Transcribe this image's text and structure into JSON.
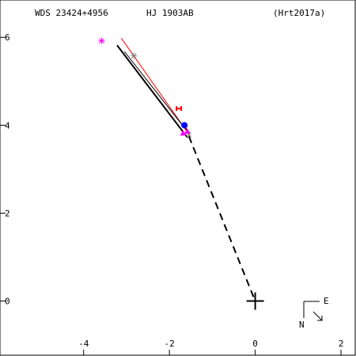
{
  "header": {
    "wds_id": "WDS 23424+4956",
    "discoverer": "HJ 1903AB",
    "reference": "(Hrt2017a)"
  },
  "compass": {
    "north_label": "N",
    "east_label": "E"
  },
  "chart_data": {
    "type": "scatter",
    "title": "",
    "xlabel": "",
    "ylabel": "",
    "xlim": [
      -5.95,
      2.35
    ],
    "ylim": [
      -1.25,
      6.85
    ],
    "x_ticks": [
      {
        "value": -4,
        "label": "-4"
      },
      {
        "value": -2,
        "label": "-2"
      },
      {
        "value": 0,
        "label": "0"
      },
      {
        "value": 2,
        "label": "2"
      }
    ],
    "y_ticks": [
      {
        "value": 0,
        "label": "0"
      },
      {
        "value": 2,
        "label": "2"
      },
      {
        "value": 4,
        "label": "4"
      },
      {
        "value": 6,
        "label": "6"
      }
    ],
    "primary": {
      "x": 0,
      "y": 0,
      "marker": "cross"
    },
    "orbit_segment": {
      "x": [
        -3.22,
        -1.58
      ],
      "y": [
        5.82,
        3.72
      ],
      "color": "#000000"
    },
    "linear_fit": {
      "x": [
        -3.12,
        -1.5
      ],
      "y": [
        5.98,
        3.73
      ],
      "color": "#ff0000"
    },
    "residual_line": {
      "x": [
        -3.05,
        -1.68
      ],
      "y": [
        5.68,
        3.98
      ],
      "color": "#000000"
    },
    "dashed_line": {
      "x": [
        -1.65,
        0
      ],
      "y": [
        4.0,
        0
      ],
      "color": "#000000"
    },
    "series": [
      {
        "marker": "asterisk",
        "color": "#ff00ff",
        "points": [
          {
            "x": -3.58,
            "y": 5.92
          }
        ]
      },
      {
        "marker": "asterisk",
        "color": "#808080",
        "points": [
          {
            "x": -2.83,
            "y": 5.58
          }
        ]
      },
      {
        "marker": "H",
        "color": "#ff0000",
        "points": [
          {
            "x": -1.78,
            "y": 4.38
          }
        ]
      },
      {
        "marker": "circle",
        "color": "#0000ff",
        "points": [
          {
            "x": -1.65,
            "y": 4.0
          }
        ]
      },
      {
        "marker": "triangle",
        "color": "#ff00ff",
        "points": [
          {
            "x": -1.68,
            "y": 3.82
          },
          {
            "x": -1.58,
            "y": 3.86
          }
        ]
      },
      {
        "marker": "x",
        "color": "#808080",
        "points": [
          {
            "x": -1.55,
            "y": 3.78
          }
        ]
      }
    ]
  }
}
